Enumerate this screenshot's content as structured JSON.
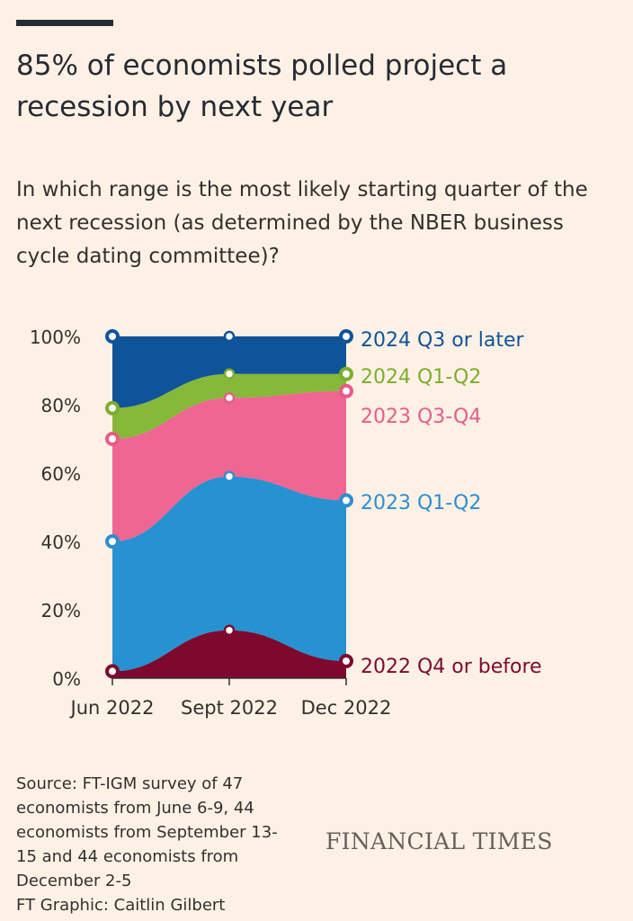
{
  "header": {
    "title": "85% of economists polled project a recession by next year",
    "subtitle": "In which range is the most likely starting quarter of the next recession (as determined by the NBER business cycle dating committee)?"
  },
  "chart_data": {
    "type": "area",
    "stacked": true,
    "categories": [
      "Jun 2022",
      "Sept 2022",
      "Dec 2022"
    ],
    "ylim": [
      0,
      100
    ],
    "yticks": [
      0,
      20,
      40,
      60,
      80,
      100
    ],
    "ytick_labels": [
      "0%",
      "20%",
      "40%",
      "60%",
      "80%",
      "100%"
    ],
    "series": [
      {
        "name": "2022 Q4 or before",
        "values": [
          2,
          14,
          5
        ],
        "color": "#7d0a2e"
      },
      {
        "name": "2023 Q1-Q2",
        "values": [
          38,
          45,
          47
        ],
        "color": "#2692d1"
      },
      {
        "name": "2023 Q3-Q4",
        "values": [
          30,
          23,
          32
        ],
        "color": "#ef6692"
      },
      {
        "name": "2024 Q1-Q2",
        "values": [
          9,
          7,
          5
        ],
        "color": "#86b83a"
      },
      {
        "name": "2024 Q3 or later",
        "values": [
          21,
          11,
          11
        ],
        "color": "#0f5499"
      }
    ],
    "cumulative_top": [
      [
        2,
        14,
        5
      ],
      [
        40,
        59,
        52
      ],
      [
        70,
        82,
        84
      ],
      [
        79,
        89,
        89
      ],
      [
        100,
        100,
        100
      ]
    ],
    "label_colors": [
      "#7d0a2e",
      "#2e8ed0",
      "#e85c8a",
      "#7cae2c",
      "#0f5499"
    ]
  },
  "footer": {
    "source_lines": [
      "Source: FT-IGM survey of 47",
      "economists from June 6-9, 44",
      "economists from September 13-",
      "15 and 44 economists from",
      "December 2-5",
      "FT Graphic: Caitlin Gilbert"
    ],
    "brand": "FINANCIAL TIMES"
  }
}
